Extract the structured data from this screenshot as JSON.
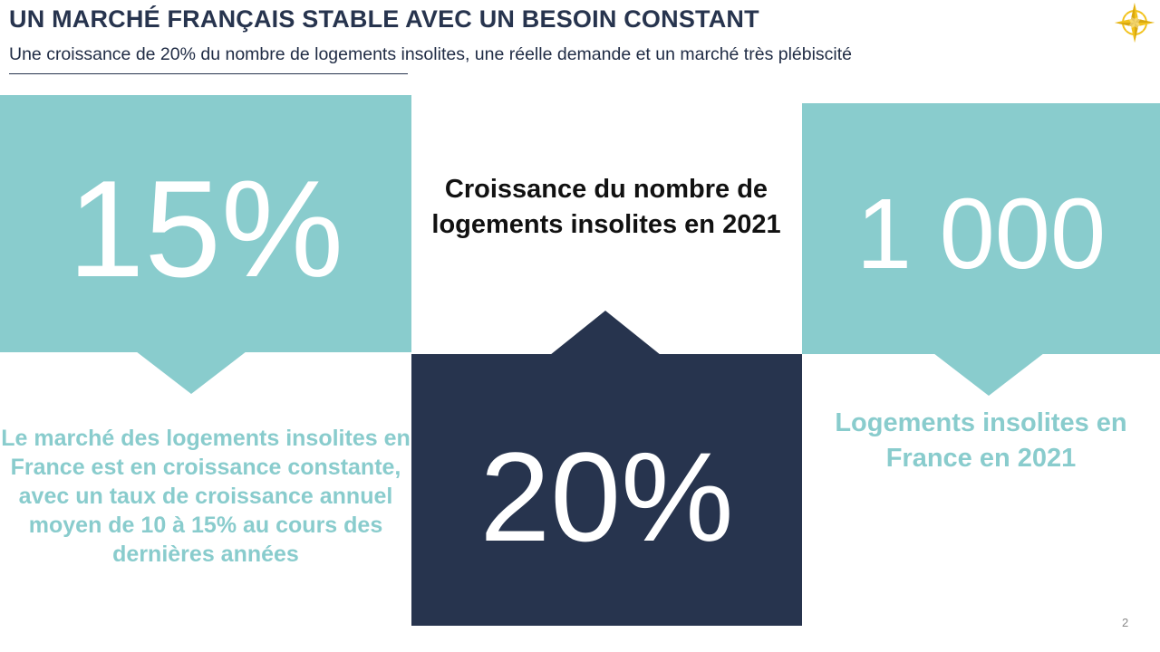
{
  "slide": {
    "title": "UN MARCHÉ FRANÇAIS STABLE AVEC UN BESOIN CONSTANT",
    "subtitle": "Une croissance de 20% du nombre de logements insolites, une réelle demande et un marché très plébiscité",
    "page_number": "2",
    "logo_icon": "compass-star-icon"
  },
  "stats": {
    "left": {
      "value": "15%",
      "description": "Le marché des logements insolites en France est en croissance constante, avec un taux de croissance annuel moyen de 10 à 15% au cours des dernières années"
    },
    "center": {
      "value": "20%",
      "description": "Croissance du nombre de logements insolites en 2021"
    },
    "right": {
      "value": "1 000",
      "description": "Logements insolites en France en 2021"
    }
  },
  "colors": {
    "teal": "#89cccd",
    "navy": "#27344e",
    "gold": "#f2c21b"
  }
}
